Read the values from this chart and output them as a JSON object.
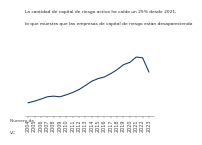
{
  "title_line1": "La cantidad de capital de riesgo activo ha caído un 25% desde 2021,",
  "title_line2": "lo que muestra que las empresas de capital de riesgo están desapareciendo",
  "ylabel_line1": "Número de",
  "ylabel_line2": "VC",
  "line_color": "#1a3f6f",
  "years": [
    2004,
    2005,
    2006,
    2007,
    2008,
    2009,
    2010,
    2011,
    2012,
    2013,
    2014,
    2015,
    2016,
    2017,
    2018,
    2019,
    2020,
    2021,
    2022,
    2023
  ],
  "values": [
    400,
    450,
    510,
    580,
    600,
    580,
    640,
    710,
    800,
    920,
    1050,
    1130,
    1180,
    1280,
    1400,
    1550,
    1620,
    1780,
    1760,
    1330
  ],
  "background_color": "#ffffff",
  "grid_color": "#cccccc",
  "tick_fontsize": 3.5,
  "title_fontsize": 3.2,
  "ylabel_fontsize": 3.2
}
